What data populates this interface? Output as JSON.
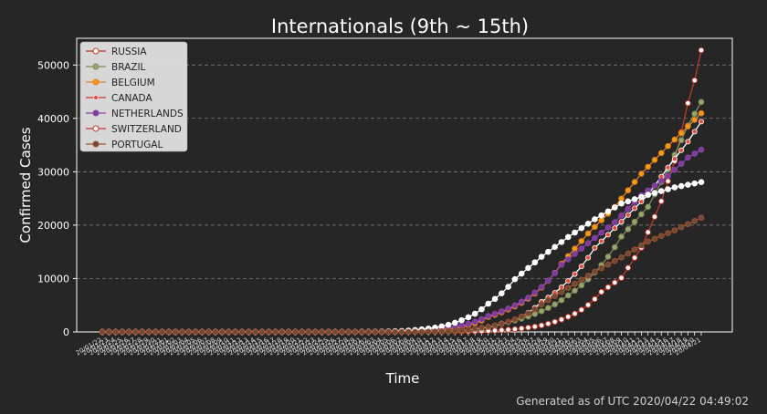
{
  "footer": "Generated as of UTC 2020/04/22 04:49:02",
  "chart_data": {
    "type": "line",
    "title": "Internationals (9th ~ 15th)",
    "xlabel": "Time",
    "ylabel": "Confirmed Cases",
    "ylim": [
      0,
      55000
    ],
    "yticks": [
      0,
      10000,
      20000,
      30000,
      40000,
      50000
    ],
    "grid": "horizontal dashed",
    "legend_position": "top-left",
    "x_start": "2020-01-22",
    "x_end": "2020-04-21",
    "x_tick_labels_legible": false,
    "series": [
      {
        "name": "RUSSIA",
        "color": "#c0392b",
        "marker_fill": "#ffffff",
        "marker": "circle",
        "x": [
          "2020-03-01",
          "2020-03-15",
          "2020-03-25",
          "2020-03-31",
          "2020-04-03",
          "2020-04-06",
          "2020-04-09",
          "2020-04-12",
          "2020-04-15",
          "2020-04-17",
          "2020-04-19",
          "2020-04-20",
          "2020-04-21"
        ],
        "values": [
          3,
          63,
          658,
          2337,
          4149,
          7497,
          10131,
          15770,
          24490,
          32008,
          42853,
          47121,
          52763
        ]
      },
      {
        "name": "BRAZIL",
        "color": "#7f8c5a",
        "marker_fill": "#9aa56e",
        "marker": "circle",
        "x": [
          "2020-03-01",
          "2020-03-15",
          "2020-03-22",
          "2020-03-28",
          "2020-04-01",
          "2020-04-05",
          "2020-04-09",
          "2020-04-13",
          "2020-04-16",
          "2020-04-19",
          "2020-04-21"
        ],
        "values": [
          2,
          200,
          1593,
          3904,
          6836,
          11130,
          17857,
          23430,
          30425,
          38654,
          43079
        ]
      },
      {
        "name": "BELGIUM",
        "color": "#e67e22",
        "marker_fill": "#f39c12",
        "marker": "circle",
        "x": [
          "2020-03-01",
          "2020-03-12",
          "2020-03-20",
          "2020-03-26",
          "2020-03-31",
          "2020-04-04",
          "2020-04-08",
          "2020-04-12",
          "2020-04-16",
          "2020-04-19",
          "2020-04-21"
        ],
        "values": [
          2,
          314,
          2815,
          6235,
          12775,
          18431,
          23403,
          29647,
          34809,
          38496,
          40956
        ]
      },
      {
        "name": "CANADA",
        "color": "#ffffff",
        "marker_fill": "#e74c3c",
        "marker": "dot",
        "x": [
          "2020-03-01",
          "2020-03-14",
          "2020-03-22",
          "2020-03-28",
          "2020-04-01",
          "2020-04-05",
          "2020-04-09",
          "2020-04-13",
          "2020-04-16",
          "2020-04-19",
          "2020-04-21"
        ],
        "values": [
          24,
          198,
          1468,
          5655,
          9560,
          15756,
          20654,
          25680,
          30808,
          35632,
          39402
        ]
      },
      {
        "name": "NETHERLANDS",
        "color": "#8e44ad",
        "marker_fill": "#7d3c98",
        "marker": "circle",
        "x": [
          "2020-03-01",
          "2020-03-12",
          "2020-03-20",
          "2020-03-26",
          "2020-03-31",
          "2020-04-04",
          "2020-04-08",
          "2020-04-12",
          "2020-04-16",
          "2020-04-19",
          "2020-04-21"
        ],
        "values": [
          10,
          503,
          2994,
          6440,
          12595,
          16627,
          20549,
          25587,
          29214,
          32655,
          34134
        ]
      },
      {
        "name": "SWITZERLAND",
        "color": "#ffffff",
        "marker_fill": "#ffffff",
        "marker": "circle",
        "x": [
          "2020-03-01",
          "2020-03-10",
          "2020-03-16",
          "2020-03-20",
          "2020-03-24",
          "2020-03-28",
          "2020-04-01",
          "2020-04-05",
          "2020-04-09",
          "2020-04-13",
          "2020-04-17",
          "2020-04-21"
        ],
        "values": [
          27,
          491,
          2200,
          5294,
          9877,
          14076,
          17768,
          21100,
          24051,
          25688,
          27078,
          28063
        ]
      },
      {
        "name": "PORTUGAL",
        "color": "#a0522d",
        "marker_fill": "#6e4a3a",
        "marker": "circle",
        "x": [
          "2020-03-02",
          "2020-03-12",
          "2020-03-18",
          "2020-03-24",
          "2020-03-28",
          "2020-04-01",
          "2020-04-05",
          "2020-04-09",
          "2020-04-13",
          "2020-04-17",
          "2020-04-21"
        ],
        "values": [
          2,
          78,
          642,
          2362,
          5170,
          8251,
          11278,
          13956,
          16934,
          19022,
          21379
        ]
      }
    ]
  }
}
